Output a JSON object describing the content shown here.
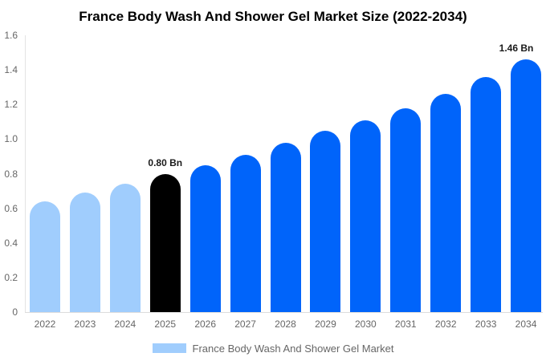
{
  "chart_data": {
    "type": "bar",
    "title": "France Body Wash And Shower Gel Market Size (2022-2034)",
    "categories": [
      "2022",
      "2023",
      "2024",
      "2025",
      "2026",
      "2027",
      "2028",
      "2029",
      "2030",
      "2031",
      "2032",
      "2033",
      "2034"
    ],
    "values": [
      0.64,
      0.69,
      0.74,
      0.8,
      0.85,
      0.91,
      0.98,
      1.05,
      1.11,
      1.18,
      1.26,
      1.36,
      1.46
    ],
    "unit": "Bn",
    "bar_colors": [
      "#A0CDFD",
      "#A0CDFD",
      "#A0CDFD",
      "#000000",
      "#0064FA",
      "#0064FA",
      "#0064FA",
      "#0064FA",
      "#0064FA",
      "#0064FA",
      "#0064FA",
      "#0064FA",
      "#0064FA"
    ],
    "point_labels": [
      null,
      null,
      null,
      "0.80 Bn",
      null,
      null,
      null,
      null,
      null,
      null,
      null,
      null,
      "1.46 Bn"
    ],
    "xlabel": "",
    "ylabel": "",
    "ylim": [
      0,
      1.6
    ],
    "yticks": [
      "0",
      "0.2",
      "0.4",
      "0.6",
      "0.8",
      "1.0",
      "1.2",
      "1.4",
      "1.6"
    ],
    "grid": false,
    "legend": {
      "label": "France Body Wash And Shower Gel Market",
      "swatch_color": "#A0CDFD",
      "position": "bottom"
    },
    "colors": {
      "historical": "#A0CDFD",
      "base_year": "#000000",
      "forecast": "#0064FA"
    }
  }
}
